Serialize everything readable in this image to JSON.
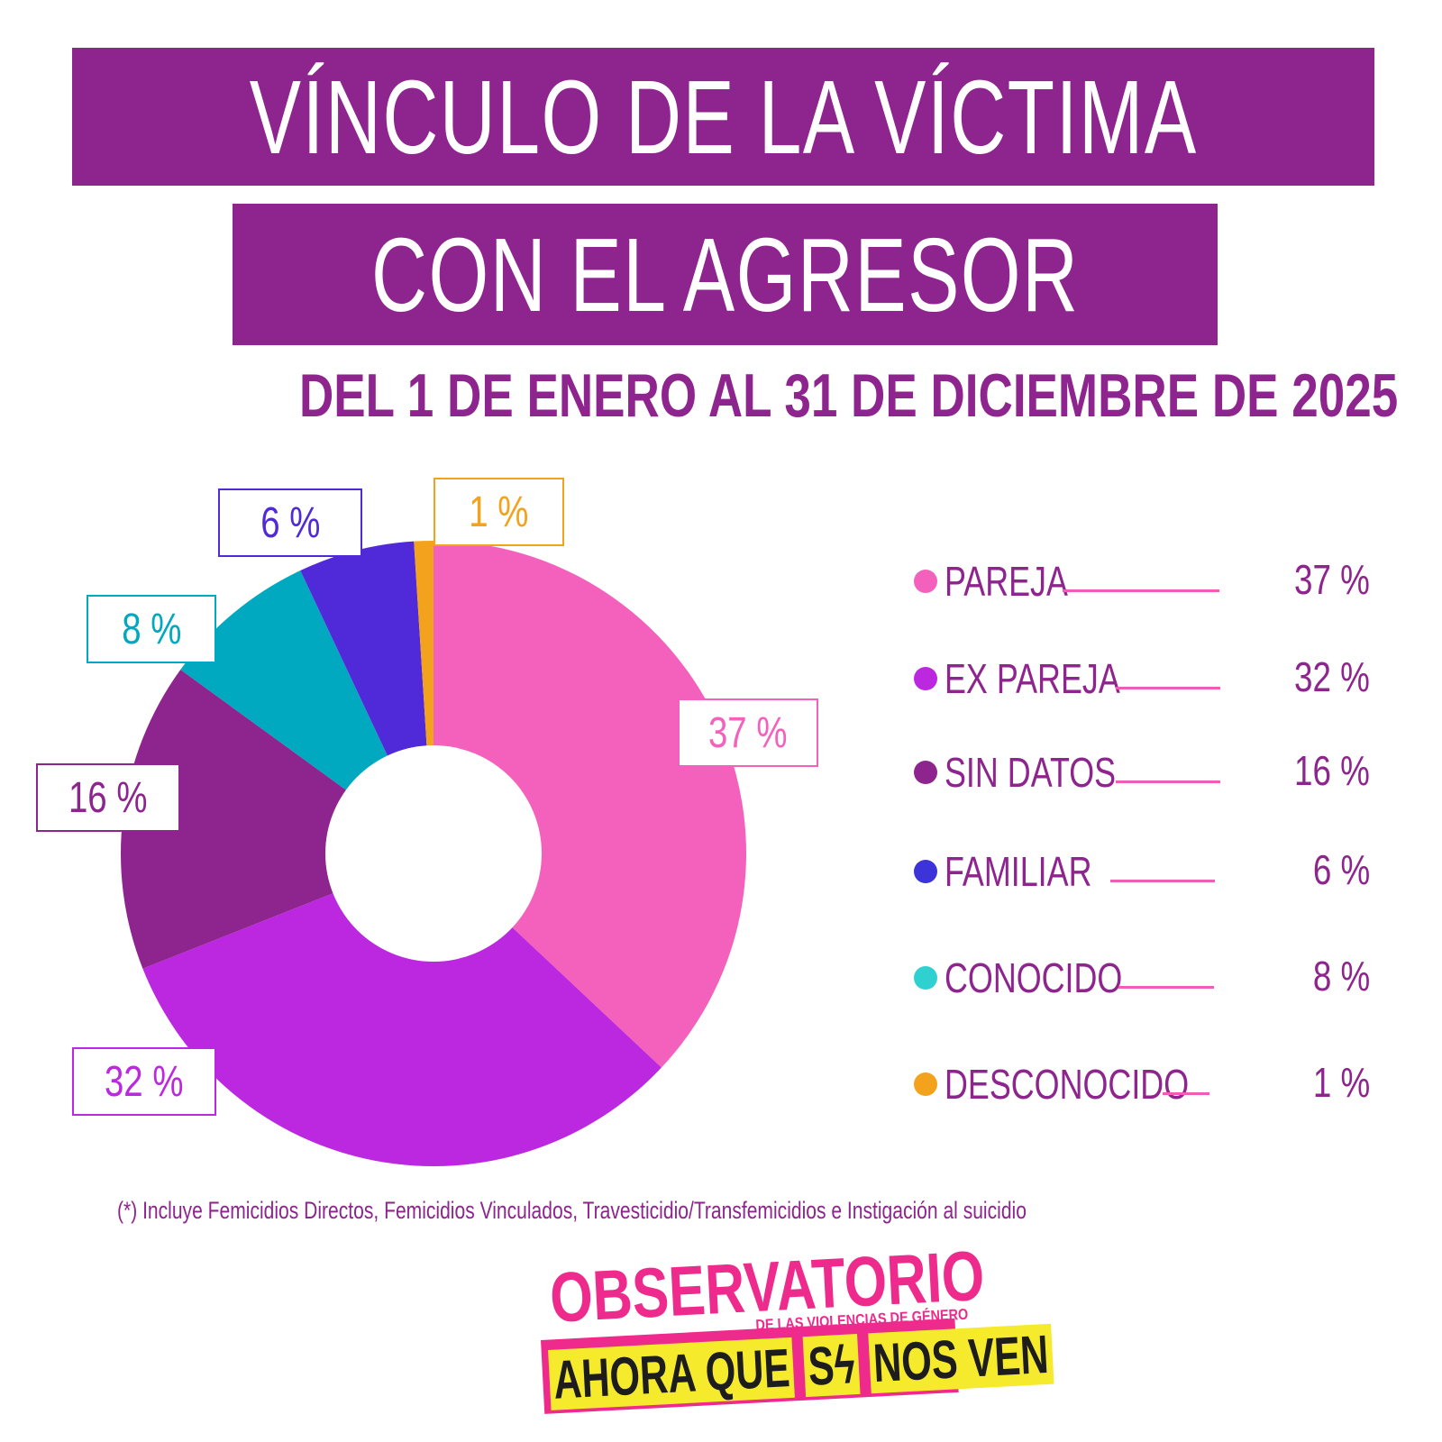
{
  "header": {
    "title_line1": "VÍNCULO DE LA VÍCTIMA",
    "title_line2": "CON EL AGRESOR",
    "subtitle": "DEL 1 DE ENERO AL 31 DE DICIEMBRE DE 2025"
  },
  "chart_data": {
    "type": "pie",
    "variant": "donut",
    "title": "VÍNCULO DE LA VÍCTIMA CON EL AGRESOR",
    "subtitle": "DEL 1 DE ENERO AL 31 DE DICIEMBRE DE 2025",
    "unit": "%",
    "start_angle": "12 o'clock",
    "direction": "clockwise",
    "legend_position": "right",
    "slices": [
      {
        "label": "PAREJA",
        "value": 37,
        "display": "37 %",
        "color": "#f461bd"
      },
      {
        "label": "EX PAREJA",
        "value": 32,
        "display": "32 %",
        "color": "#bb28e0"
      },
      {
        "label": "SIN DATOS",
        "value": 16,
        "display": "16 %",
        "color": "#8e248d"
      },
      {
        "label": "CONOCIDO",
        "value": 8,
        "display": "8 %",
        "color": "#00a8c0"
      },
      {
        "label": "FAMILIAR",
        "value": 6,
        "display": "6 %",
        "color": "#502ad9"
      },
      {
        "label": "DESCONOCIDO",
        "value": 1,
        "display": "1 %",
        "color": "#f3a21e"
      }
    ]
  },
  "legend": {
    "items": [
      {
        "label": "PAREJA",
        "value": "37 %",
        "color": "#f461bd"
      },
      {
        "label": "EX PAREJA",
        "value": "32 %",
        "color": "#bb28e0"
      },
      {
        "label": "SIN DATOS",
        "value": "16 %",
        "color": "#8e248d"
      },
      {
        "label": "FAMILIAR",
        "value": "6 %",
        "color": "#3c33d8"
      },
      {
        "label": "CONOCIDO",
        "value": "8 %",
        "color": "#2fd0d0"
      },
      {
        "label": "DESCONOCIDO",
        "value": "1 %",
        "color": "#f3a21e"
      }
    ]
  },
  "footnote": "(*) Incluye Femicidios Directos, Femicidios Vinculados,  Travesticidio/Transfemicidios e Instigación al suicidio",
  "logo": {
    "main": "OBSERVATORIO",
    "sub": "DE LAS VIOLENCIAS DE GÉNERO",
    "tag_part1": "AHORA QUE",
    "tag_s": "S",
    "tag_bolt": "ϟ",
    "tag_part2": "NOS VEN"
  }
}
